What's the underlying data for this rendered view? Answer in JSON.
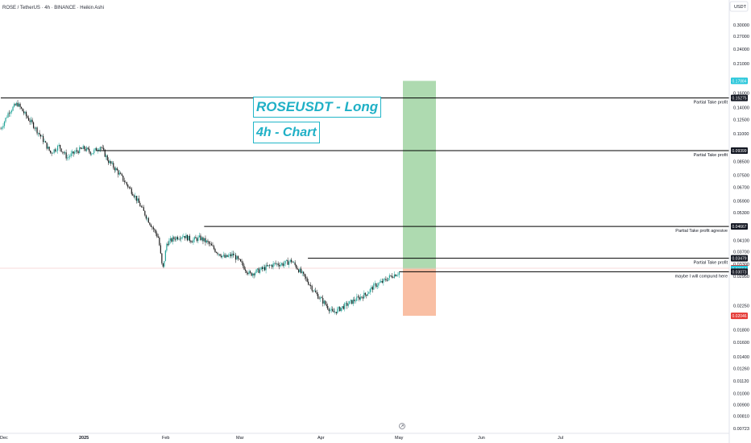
{
  "symbol_title": "ROSE / TetherUS · 4h · BINANCE · Heikin Ashi",
  "currency": "USDT",
  "annotations": {
    "title": "ROSEUSDT - Long",
    "subtitle": "4h - Chart"
  },
  "colors": {
    "up": "#26a69a",
    "down": "#1b1b1b",
    "profit_zone": "#a5d6a7",
    "loss_zone": "#f8b89a",
    "accent": "#22b6c8",
    "current_line": "#f0b8b8",
    "badge_dark": "#131722",
    "badge_red": "#e53935",
    "badge_teal": "#26c6da"
  },
  "chart_data": {
    "type": "candlestick",
    "y_scale": "log",
    "ylim": [
      0.00723,
      0.33
    ],
    "y_ticks": [
      "0.30000",
      "0.27000",
      "0.24000",
      "0.21000",
      "0.16000",
      "0.14000",
      "0.12500",
      "0.11000",
      "0.08500",
      "0.07500",
      "0.06700",
      "0.05900",
      "0.05300",
      "0.04100",
      "0.03700",
      "0.03300",
      "0.02950",
      "0.02250",
      "0.01800",
      "0.01600",
      "0.01400",
      "0.01260",
      "0.01120",
      "0.01000",
      "0.00900",
      "0.00810",
      "0.00723"
    ],
    "x_ticks": [
      "Dec",
      "2025",
      "Feb",
      "Mar",
      "Apr",
      "May",
      "Jun",
      "Jul"
    ],
    "price_path": [
      [
        0,
        0.115
      ],
      [
        2,
        0.135
      ],
      [
        4,
        0.145
      ],
      [
        6,
        0.13
      ],
      [
        8,
        0.118
      ],
      [
        10,
        0.105
      ],
      [
        12,
        0.092
      ],
      [
        14,
        0.098
      ],
      [
        16,
        0.088
      ],
      [
        18,
        0.093
      ],
      [
        20,
        0.096
      ],
      [
        22,
        0.092
      ],
      [
        24,
        0.098
      ],
      [
        26,
        0.085
      ],
      [
        28,
        0.078
      ],
      [
        30,
        0.07
      ],
      [
        32,
        0.063
      ],
      [
        34,
        0.055
      ],
      [
        36,
        0.048
      ],
      [
        38,
        0.042
      ],
      [
        39,
        0.031
      ],
      [
        40,
        0.04
      ],
      [
        42,
        0.042
      ],
      [
        44,
        0.043
      ],
      [
        46,
        0.041
      ],
      [
        48,
        0.042
      ],
      [
        50,
        0.04
      ],
      [
        52,
        0.037
      ],
      [
        54,
        0.035
      ],
      [
        56,
        0.036
      ],
      [
        58,
        0.033
      ],
      [
        60,
        0.03
      ],
      [
        62,
        0.031
      ],
      [
        64,
        0.032
      ],
      [
        66,
        0.033
      ],
      [
        68,
        0.033
      ],
      [
        70,
        0.034
      ],
      [
        72,
        0.031
      ],
      [
        74,
        0.028
      ],
      [
        76,
        0.025
      ],
      [
        78,
        0.023
      ],
      [
        80,
        0.021
      ],
      [
        82,
        0.022
      ],
      [
        84,
        0.023
      ],
      [
        86,
        0.024
      ],
      [
        88,
        0.025
      ],
      [
        90,
        0.027
      ],
      [
        92,
        0.028
      ],
      [
        94,
        0.0295
      ],
      [
        96,
        0.0305
      ]
    ],
    "levels": [
      {
        "price": "0.15275",
        "label": "Partial Take profit",
        "price_num": 0.15275,
        "start": 0
      },
      {
        "price": "0.09399",
        "label": "Partial Take profit",
        "price_num": 0.09399,
        "start": 23
      },
      {
        "price": "0.04667",
        "label": "Partial Take profit agresive",
        "price_num": 0.04667,
        "start": 49
      },
      {
        "price": "0.03479",
        "label": "Partial Take profit",
        "price_num": 0.03479,
        "start": 74
      },
      {
        "price": "0.03073",
        "label": "maybe I will compund here",
        "price_num": 0.03073,
        "start": 96
      }
    ],
    "price_badges": [
      {
        "price": "0.17884",
        "value": 0.17884,
        "style": "teal"
      },
      {
        "price": "0.15275",
        "value": 0.15275,
        "style": "dark"
      },
      {
        "price": "0.09399",
        "value": 0.09399,
        "style": "dark"
      },
      {
        "price": "0.04667",
        "value": 0.04667,
        "style": "dark"
      },
      {
        "price": "0.03479",
        "value": 0.03479,
        "style": "dark"
      },
      {
        "price": "0.03174",
        "value": 0.03174,
        "style": "red"
      },
      {
        "price": "0.03154",
        "value": 0.03154,
        "style": "teal"
      },
      {
        "price": "0.03073",
        "value": 0.03073,
        "style": "dark"
      },
      {
        "price": "0.02046",
        "value": 0.02046,
        "style": "red"
      }
    ],
    "position": {
      "entry": 0.03154,
      "target": 0.17884,
      "stop": 0.02046
    },
    "current_price": 0.03174
  }
}
